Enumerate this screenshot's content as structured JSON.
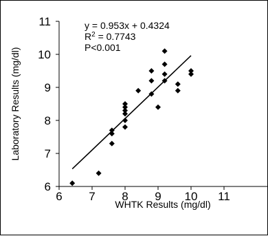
{
  "chart_data": {
    "type": "scatter",
    "xlabel": "WHTK Results (mg/dl)",
    "ylabel": "Laboratory Results (mg/dl)",
    "xlim": [
      6,
      11
    ],
    "ylim": [
      6,
      11
    ],
    "x_ticks": [
      "6",
      "7",
      "8",
      "9",
      "10",
      "11"
    ],
    "y_ticks": [
      "6",
      "7",
      "8",
      "9",
      "10",
      "11"
    ],
    "grid": false,
    "marker_color": "#000000",
    "points": [
      {
        "x": 6.4,
        "y": 6.1
      },
      {
        "x": 7.2,
        "y": 6.4
      },
      {
        "x": 7.6,
        "y": 7.3
      },
      {
        "x": 7.6,
        "y": 7.6
      },
      {
        "x": 7.6,
        "y": 7.7
      },
      {
        "x": 8.0,
        "y": 7.8
      },
      {
        "x": 8.0,
        "y": 8.0
      },
      {
        "x": 8.0,
        "y": 8.2
      },
      {
        "x": 8.0,
        "y": 8.3
      },
      {
        "x": 8.0,
        "y": 8.4
      },
      {
        "x": 8.0,
        "y": 8.5
      },
      {
        "x": 8.4,
        "y": 8.9
      },
      {
        "x": 8.8,
        "y": 8.8
      },
      {
        "x": 8.8,
        "y": 9.2
      },
      {
        "x": 8.8,
        "y": 9.5
      },
      {
        "x": 9.0,
        "y": 8.4
      },
      {
        "x": 9.2,
        "y": 9.2
      },
      {
        "x": 9.2,
        "y": 9.4
      },
      {
        "x": 9.2,
        "y": 9.7
      },
      {
        "x": 9.2,
        "y": 10.1
      },
      {
        "x": 9.6,
        "y": 8.9
      },
      {
        "x": 9.6,
        "y": 9.1
      },
      {
        "x": 10.0,
        "y": 9.4
      },
      {
        "x": 10.0,
        "y": 9.5
      }
    ],
    "trendline": {
      "slope": 0.953,
      "intercept": 0.4324,
      "x_range": [
        6.4,
        10.0
      ]
    },
    "annotations": [
      "y = 0.953x + 0.4324",
      "P<0.001"
    ],
    "r2": {
      "base": "R",
      "exponent": "2",
      "rest": " = 0.7743"
    }
  }
}
